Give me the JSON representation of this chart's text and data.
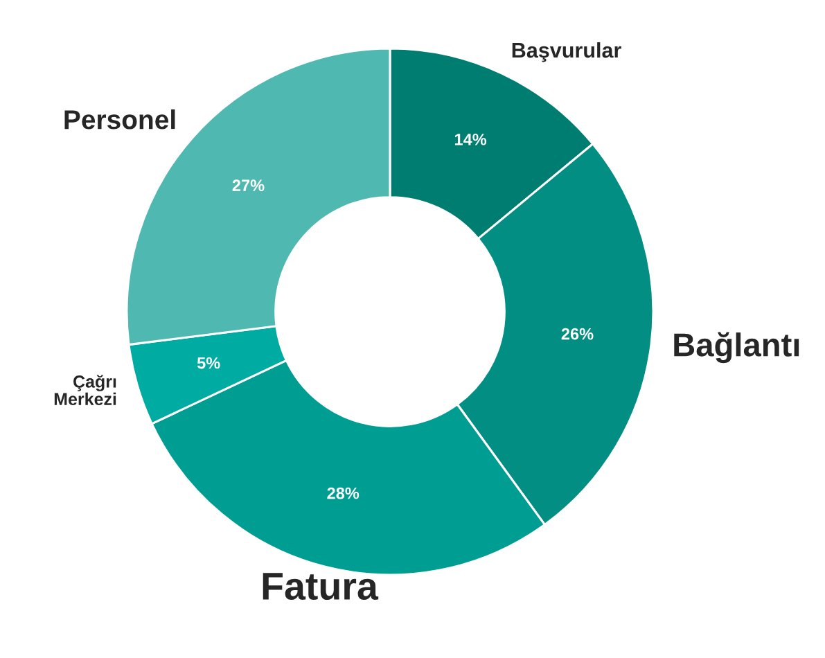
{
  "chart_data": {
    "type": "donut",
    "categories": [
      "Başvurular",
      "Bağlantı",
      "Fatura",
      "Çağrı\nMerkezi",
      "Personel"
    ],
    "values": [
      14,
      26,
      28,
      5,
      27
    ],
    "value_labels": [
      "14%",
      "26%",
      "28%",
      "5%",
      "27%"
    ],
    "colors": [
      "#007d71",
      "#028e82",
      "#009d93",
      "#00aba2",
      "#4fb8b1"
    ],
    "legend": false
  }
}
